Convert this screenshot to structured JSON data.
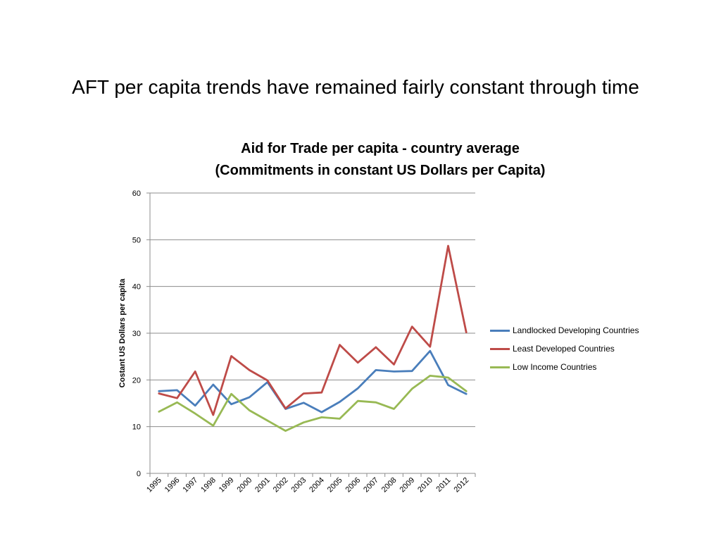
{
  "slide": {
    "title": "AFT per capita trends have remained fairly constant through time"
  },
  "chart_data": {
    "type": "line",
    "title": "Aid for Trade per capita - country average",
    "subtitle": "(Commitments in constant US Dollars per Capita)",
    "xlabel": "",
    "ylabel": "Costant US Dollars per capita",
    "ylim": [
      0,
      60
    ],
    "yticks": [
      "0",
      "10",
      "20",
      "30",
      "40",
      "50",
      "60"
    ],
    "grid": true,
    "legend_position": "right",
    "categories": [
      "1995",
      "1996",
      "1997",
      "1998",
      "1999",
      "2000",
      "2001",
      "2002",
      "2003",
      "2004",
      "2005",
      "2006",
      "2007",
      "2008",
      "2009",
      "2010",
      "2011",
      "2012"
    ],
    "series": [
      {
        "name": "Landlocked Developing Countries",
        "color": "#4a7ebb",
        "values": [
          17.6,
          17.8,
          14.5,
          19.0,
          14.8,
          16.3,
          19.5,
          13.8,
          15.1,
          13.1,
          15.3,
          18.2,
          22.1,
          21.8,
          21.9,
          26.2,
          18.9,
          17.0
        ]
      },
      {
        "name": "Least Developed Countries",
        "color": "#be4b48",
        "values": [
          17.1,
          16.1,
          21.8,
          12.5,
          25.1,
          22.1,
          19.9,
          13.9,
          17.1,
          17.3,
          27.5,
          23.7,
          27.0,
          23.3,
          31.4,
          27.1,
          48.7,
          30.2
        ]
      },
      {
        "name": "Low Income Countries",
        "color": "#98b954",
        "values": [
          13.2,
          15.2,
          12.8,
          10.2,
          17.0,
          13.5,
          11.3,
          9.1,
          10.9,
          12.0,
          11.7,
          15.5,
          15.2,
          13.8,
          18.1,
          20.9,
          20.5,
          17.6
        ]
      }
    ]
  }
}
